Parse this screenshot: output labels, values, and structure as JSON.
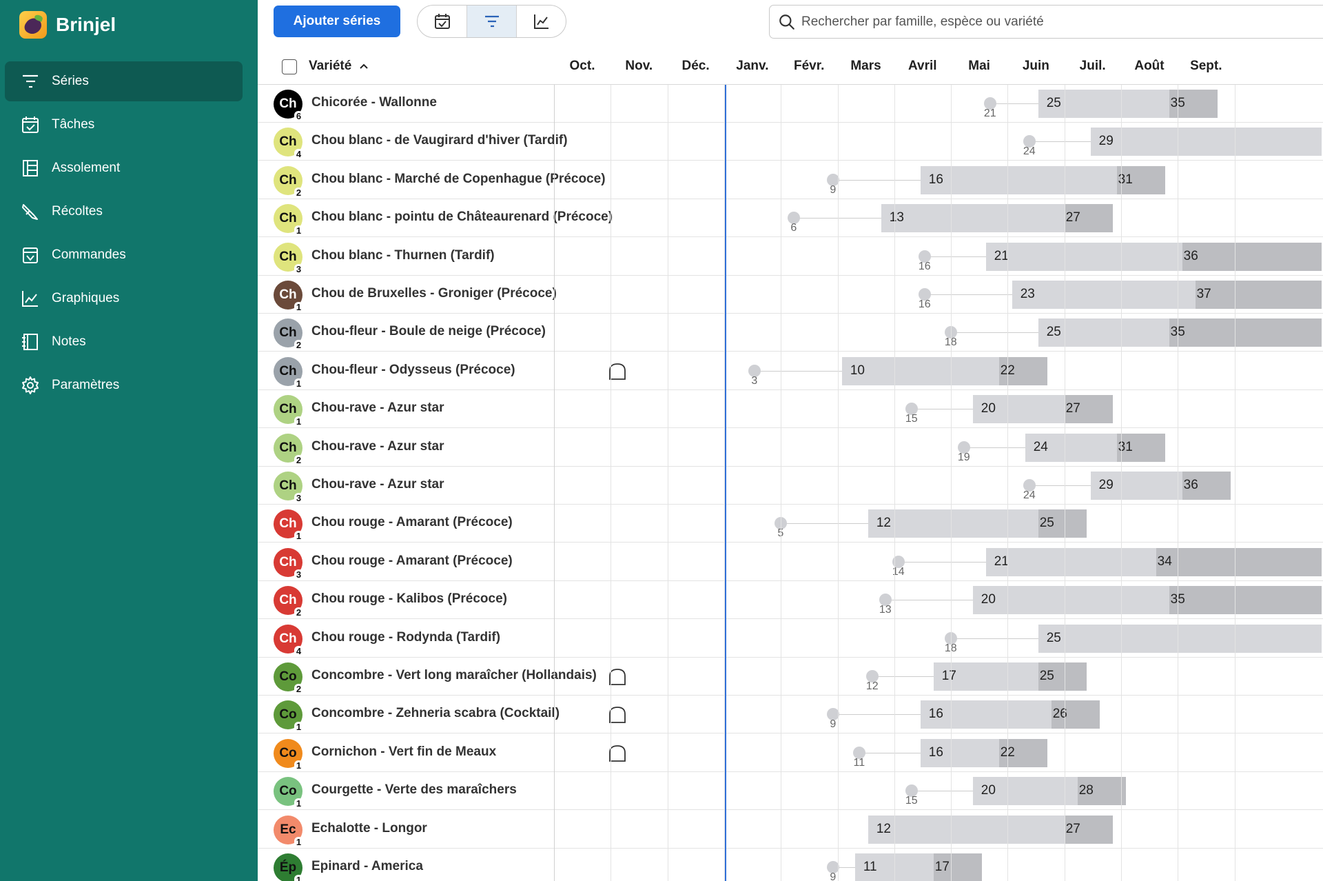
{
  "app": {
    "name": "Brinjel"
  },
  "nav": [
    {
      "label": "Séries",
      "icon": "series-icon",
      "active": true
    },
    {
      "label": "Tâches",
      "icon": "tasks-calendar-icon",
      "active": false
    },
    {
      "label": "Assolement",
      "icon": "assolement-icon",
      "active": false
    },
    {
      "label": "Récoltes",
      "icon": "harvest-knife-icon",
      "active": false
    },
    {
      "label": "Commandes",
      "icon": "orders-basket-icon",
      "active": false
    },
    {
      "label": "Graphiques",
      "icon": "chart-icon",
      "active": false
    },
    {
      "label": "Notes",
      "icon": "notes-icon",
      "active": false
    },
    {
      "label": "Paramètres",
      "icon": "gear-icon",
      "active": false
    }
  ],
  "toolbar": {
    "add_label": "Ajouter séries",
    "views": [
      {
        "name": "calendar-view",
        "icon": "calendar-icon",
        "active": false
      },
      {
        "name": "timeline-view",
        "icon": "timeline-icon",
        "active": true
      },
      {
        "name": "chart-view",
        "icon": "chart-icon",
        "active": false
      }
    ],
    "search_placeholder": "Rechercher par famille, espèce ou variété"
  },
  "table": {
    "variety_header": "Variété",
    "sort": "ascending",
    "months": [
      "Oct.",
      "Nov.",
      "Déc.",
      "Janv.",
      "Févr.",
      "Mars",
      "Avril",
      "Mai",
      "Juin",
      "Juil.",
      "Août",
      "Sept."
    ],
    "today_week": 1,
    "rows": [
      {
        "initials": "Ch",
        "count": "6",
        "color": "#000000",
        "dark": true,
        "name": "Chicorée - Wallonne",
        "shelter": false,
        "sow": "21",
        "plant": "25",
        "harvest": "35",
        "ends_open": false
      },
      {
        "initials": "Ch",
        "count": "4",
        "color": "#dfe47d",
        "dark": false,
        "name": "Chou blanc - de Vaugirard d'hiver (Tardif)",
        "shelter": false,
        "sow": "24",
        "plant": "29",
        "harvest": "",
        "ends_open": true
      },
      {
        "initials": "Ch",
        "count": "2",
        "color": "#dfe47d",
        "dark": false,
        "name": "Chou blanc - Marché de Copenhague (Précoce)",
        "shelter": false,
        "sow": "9",
        "plant": "16",
        "harvest": "31",
        "ends_open": false
      },
      {
        "initials": "Ch",
        "count": "1",
        "color": "#dfe47d",
        "dark": false,
        "name": "Chou blanc - pointu de Châteaurenard (Précoce)",
        "shelter": false,
        "sow": "6",
        "plant": "13",
        "harvest": "27",
        "ends_open": false
      },
      {
        "initials": "Ch",
        "count": "3",
        "color": "#dfe47d",
        "dark": false,
        "name": "Chou blanc - Thurnen (Tardif)",
        "shelter": false,
        "sow": "16",
        "plant": "21",
        "harvest": "36",
        "ends_open": true
      },
      {
        "initials": "Ch",
        "count": "1",
        "color": "#6b4a3a",
        "dark": true,
        "name": "Chou de Bruxelles - Groniger (Précoce)",
        "shelter": false,
        "sow": "16",
        "plant": "23",
        "harvest": "37",
        "ends_open": true
      },
      {
        "initials": "Ch",
        "count": "2",
        "color": "#9aa2aa",
        "dark": false,
        "name": "Chou-fleur - Boule de neige (Précoce)",
        "shelter": false,
        "sow": "18",
        "plant": "25",
        "harvest": "35",
        "ends_open": true
      },
      {
        "initials": "Ch",
        "count": "1",
        "color": "#9aa2aa",
        "dark": false,
        "name": "Chou-fleur - Odysseus (Précoce)",
        "shelter": true,
        "sow": "3",
        "plant": "10",
        "harvest": "22",
        "ends_open": false
      },
      {
        "initials": "Ch",
        "count": "1",
        "color": "#aed283",
        "dark": false,
        "name": "Chou-rave - Azur star",
        "shelter": false,
        "sow": "15",
        "plant": "20",
        "harvest": "27",
        "ends_open": false
      },
      {
        "initials": "Ch",
        "count": "2",
        "color": "#aed283",
        "dark": false,
        "name": "Chou-rave - Azur star",
        "shelter": false,
        "sow": "19",
        "plant": "24",
        "harvest": "31",
        "ends_open": false
      },
      {
        "initials": "Ch",
        "count": "3",
        "color": "#aed283",
        "dark": false,
        "name": "Chou-rave - Azur star",
        "shelter": false,
        "sow": "24",
        "plant": "29",
        "harvest": "36",
        "ends_open": false
      },
      {
        "initials": "Ch",
        "count": "1",
        "color": "#d83a34",
        "dark": true,
        "name": "Chou rouge - Amarant (Précoce)",
        "shelter": false,
        "sow": "5",
        "plant": "12",
        "harvest": "25",
        "ends_open": false
      },
      {
        "initials": "Ch",
        "count": "3",
        "color": "#d83a34",
        "dark": true,
        "name": "Chou rouge - Amarant (Précoce)",
        "shelter": false,
        "sow": "14",
        "plant": "21",
        "harvest": "34",
        "ends_open": true
      },
      {
        "initials": "Ch",
        "count": "2",
        "color": "#d83a34",
        "dark": true,
        "name": "Chou rouge - Kalibos (Précoce)",
        "shelter": false,
        "sow": "13",
        "plant": "20",
        "harvest": "35",
        "ends_open": true
      },
      {
        "initials": "Ch",
        "count": "4",
        "color": "#d83a34",
        "dark": true,
        "name": "Chou rouge - Rodynda (Tardif)",
        "shelter": false,
        "sow": "18",
        "plant": "25",
        "harvest": "",
        "ends_open": true
      },
      {
        "initials": "Co",
        "count": "2",
        "color": "#5e9a3a",
        "dark": false,
        "name": "Concombre - Vert long maraîcher (Hollandais)",
        "shelter": true,
        "sow": "12",
        "plant": "17",
        "harvest": "25",
        "ends_open": false
      },
      {
        "initials": "Co",
        "count": "1",
        "color": "#5e9a3a",
        "dark": false,
        "name": "Concombre - Zehneria scabra (Cocktail)",
        "shelter": true,
        "sow": "9",
        "plant": "16",
        "harvest": "26",
        "ends_open": false
      },
      {
        "initials": "Co",
        "count": "1",
        "color": "#f08a1c",
        "dark": false,
        "name": "Cornichon - Vert fin de Meaux",
        "shelter": true,
        "sow": "11",
        "plant": "16",
        "harvest": "22",
        "ends_open": false
      },
      {
        "initials": "Co",
        "count": "1",
        "color": "#79c27f",
        "dark": false,
        "name": "Courgette - Verte des maraîchers",
        "shelter": false,
        "sow": "15",
        "plant": "20",
        "harvest": "28",
        "ends_open": false
      },
      {
        "initials": "Ec",
        "count": "1",
        "color": "#f28a6b",
        "dark": false,
        "name": "Echalotte - Longor",
        "shelter": false,
        "sow": "",
        "plant": "12",
        "harvest": "27",
        "ends_open": false
      },
      {
        "initials": "Ép",
        "count": "1",
        "color": "#2e7d32",
        "dark": false,
        "name": "Epinard - America",
        "shelter": false,
        "sow": "9",
        "plant": "11",
        "harvest": "17",
        "ends_open": false
      }
    ]
  }
}
